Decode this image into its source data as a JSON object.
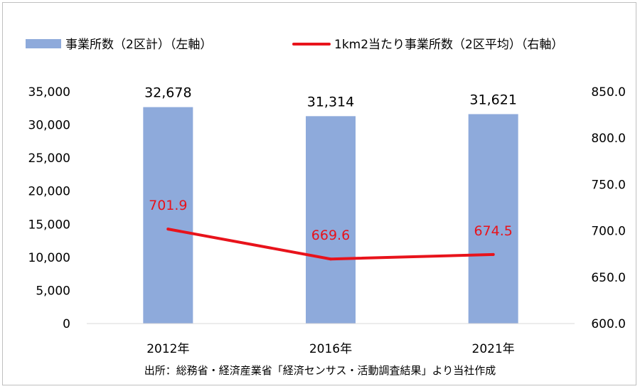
{
  "chart_data": {
    "type": "bar+line",
    "categories": [
      "2012年",
      "2016年",
      "2021年"
    ],
    "series": [
      {
        "name": "事業所数（2区計）（左軸）",
        "type": "bar",
        "axis": "left",
        "color": "#8eaadb",
        "values": [
          32678,
          31314,
          31621
        ],
        "labels": [
          "32,678",
          "31,314",
          "31,621"
        ]
      },
      {
        "name": "1km2当たり事業所数（2区平均）（右軸）",
        "type": "line",
        "axis": "right",
        "color": "#e8131b",
        "values": [
          701.9,
          669.6,
          674.5
        ],
        "labels": [
          "701.9",
          "669.6",
          "674.5"
        ]
      }
    ],
    "y_left": {
      "range": [
        0,
        35000
      ],
      "ticks": [
        0,
        5000,
        10000,
        15000,
        20000,
        25000,
        30000,
        35000
      ],
      "tick_labels": [
        "0",
        "5,000",
        "10,000",
        "15,000",
        "20,000",
        "25,000",
        "30,000",
        "35,000"
      ]
    },
    "y_right": {
      "range": [
        600,
        850
      ],
      "ticks": [
        600,
        650,
        700,
        750,
        800,
        850
      ],
      "tick_labels": [
        "600.0",
        "650.0",
        "700.0",
        "750.0",
        "800.0",
        "850.0"
      ]
    },
    "legend_position": "top",
    "grid": false
  },
  "source_note": "出所：総務省・経済産業省「経済センサス・活動調査結果」より当社作成"
}
